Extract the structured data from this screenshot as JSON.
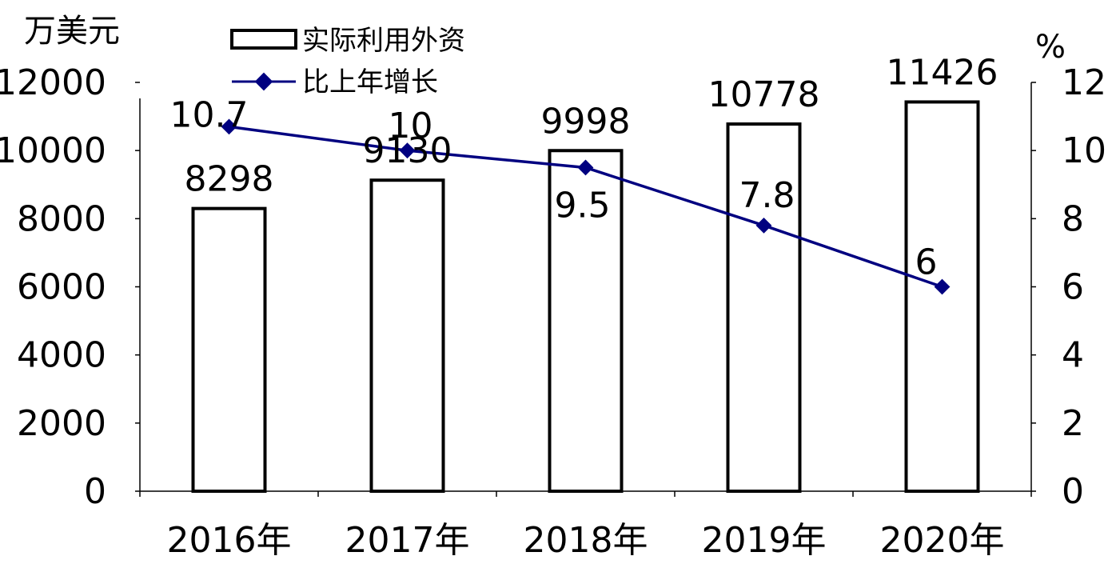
{
  "chart_data": {
    "type": "bar",
    "categories": [
      "2016年",
      "2017年",
      "2018年",
      "2019年",
      "2020年"
    ],
    "series": [
      {
        "name": "实际利用外资",
        "type": "bar",
        "axis": "left",
        "values": [
          8298,
          9130,
          9998,
          10778,
          11426
        ]
      },
      {
        "name": "比上年增长",
        "type": "line",
        "axis": "right",
        "values": [
          10.7,
          10,
          9.5,
          7.8,
          6
        ]
      }
    ],
    "y_left": {
      "unit": "万美元",
      "range": [
        0,
        12000
      ],
      "ticks": [
        0,
        2000,
        4000,
        6000,
        8000,
        10000,
        12000
      ]
    },
    "y_right": {
      "unit": "%",
      "range": [
        0,
        12
      ],
      "ticks": [
        0,
        2,
        4,
        6,
        8,
        10,
        12
      ]
    },
    "grid": false,
    "legend": "top-left",
    "colors": {
      "bar_fill": "#ffffff",
      "bar_stroke": "#000000",
      "line": "#000080",
      "marker": "#000080"
    }
  }
}
